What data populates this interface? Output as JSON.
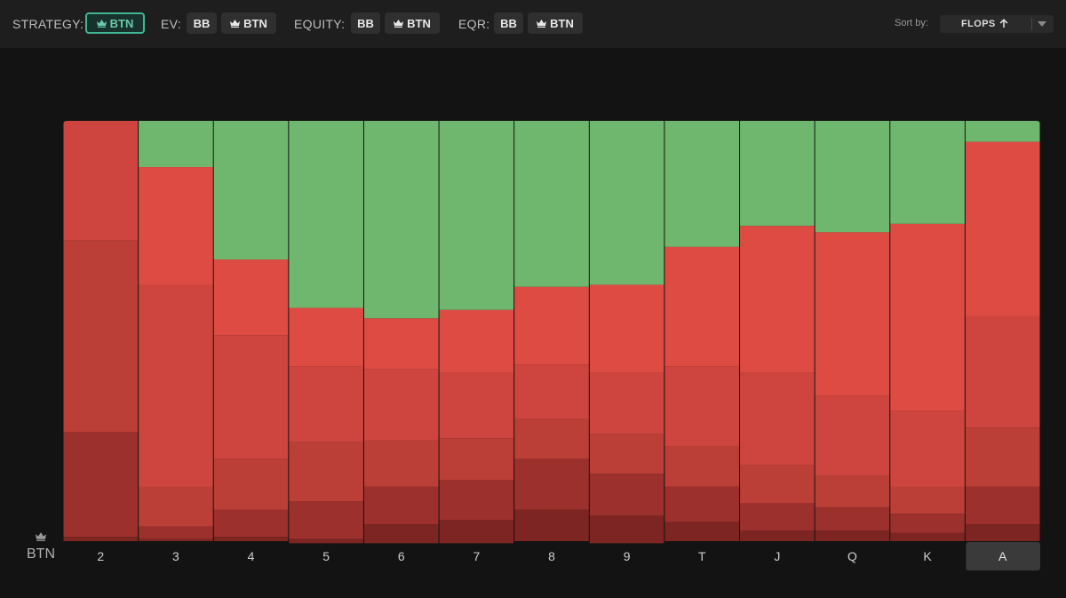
{
  "toolbar": {
    "strategy_label": "STRATEGY:",
    "strategy_btn": "BTN",
    "ev_label": "EV:",
    "ev_bb": "BB",
    "ev_btn": "BTN",
    "equity_label": "EQUITY:",
    "equity_bb": "BB",
    "equity_btn": "BTN",
    "eqr_label": "EQR:",
    "eqr_bb": "BB",
    "eqr_btn": "BTN",
    "sort_label": "Sort by:",
    "sort_value": "FLOPS"
  },
  "colors": {
    "green": "#6fb76e",
    "accent": "#3fb594",
    "red_shades": [
      "#de4b43",
      "#cd453e",
      "#bb3e37",
      "#9b302d",
      "#7c2522"
    ]
  },
  "chart_data": {
    "type": "bar",
    "stacked": true,
    "ylim": [
      0,
      100
    ],
    "row_label": "BTN",
    "categories": [
      "2",
      "3",
      "4",
      "5",
      "6",
      "7",
      "8",
      "9",
      "T",
      "J",
      "Q",
      "K",
      "A"
    ],
    "selected_category": "A",
    "series": [
      {
        "values": [
          0,
          11,
          33,
          44.5,
          47,
          45,
          39.5,
          39,
          30,
          25,
          26.5,
          24.5,
          5
        ]
      },
      {
        "values": [
          0,
          28,
          18,
          14,
          12,
          15,
          18.5,
          21,
          28.5,
          35,
          39,
          44.5,
          41.5
        ]
      },
      {
        "values": [
          28.5,
          48,
          29.5,
          18,
          17,
          15.5,
          13,
          14.5,
          19,
          22,
          19,
          18,
          26.5
        ]
      },
      {
        "values": [
          45.5,
          9.5,
          12,
          14,
          11,
          10,
          9.5,
          9.5,
          9.5,
          9,
          7.5,
          6.5,
          14
        ]
      },
      {
        "values": [
          25,
          3,
          6.5,
          9,
          9,
          9.5,
          12,
          10,
          8.5,
          6.5,
          5.5,
          4.5,
          9
        ]
      },
      {
        "values": [
          1,
          0.5,
          1,
          1,
          4.5,
          5.5,
          7.5,
          6.5,
          4.5,
          2.5,
          2.5,
          2,
          4
        ]
      }
    ]
  }
}
